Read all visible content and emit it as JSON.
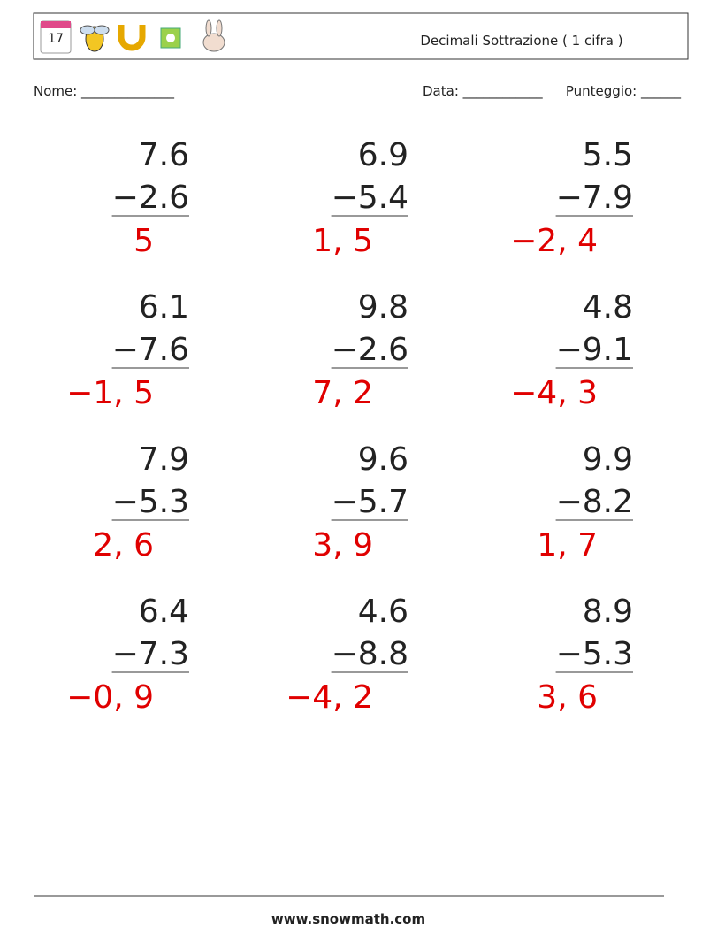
{
  "header": {
    "title": "Decimali Sottrazione ( 1 cifra )"
  },
  "fields": {
    "name": "Nome: ______________",
    "date": "Data: ____________",
    "score": "Punteggio: ______"
  },
  "problems": [
    {
      "top": "7.6",
      "bottom": "−2.6",
      "answer": "5"
    },
    {
      "top": "6.9",
      "bottom": "−5.4",
      "answer": "1, 5"
    },
    {
      "top": "5.5",
      "bottom": "−7.9",
      "answer": "−2, 4"
    },
    {
      "top": "6.1",
      "bottom": "−7.6",
      "answer": "−1, 5"
    },
    {
      "top": "9.8",
      "bottom": "−2.6",
      "answer": "7, 2"
    },
    {
      "top": "4.8",
      "bottom": "−9.1",
      "answer": "−4, 3"
    },
    {
      "top": "7.9",
      "bottom": "−5.3",
      "answer": "2, 6"
    },
    {
      "top": "9.6",
      "bottom": "−5.7",
      "answer": "3, 9"
    },
    {
      "top": "9.9",
      "bottom": "−8.2",
      "answer": "1, 7"
    },
    {
      "top": "6.4",
      "bottom": "−7.3",
      "answer": "−0, 9"
    },
    {
      "top": "4.6",
      "bottom": "−8.8",
      "answer": "−4, 2"
    },
    {
      "top": "8.9",
      "bottom": "−5.3",
      "answer": "3, 6"
    }
  ],
  "footer": {
    "site": "www.snowmath.com"
  }
}
